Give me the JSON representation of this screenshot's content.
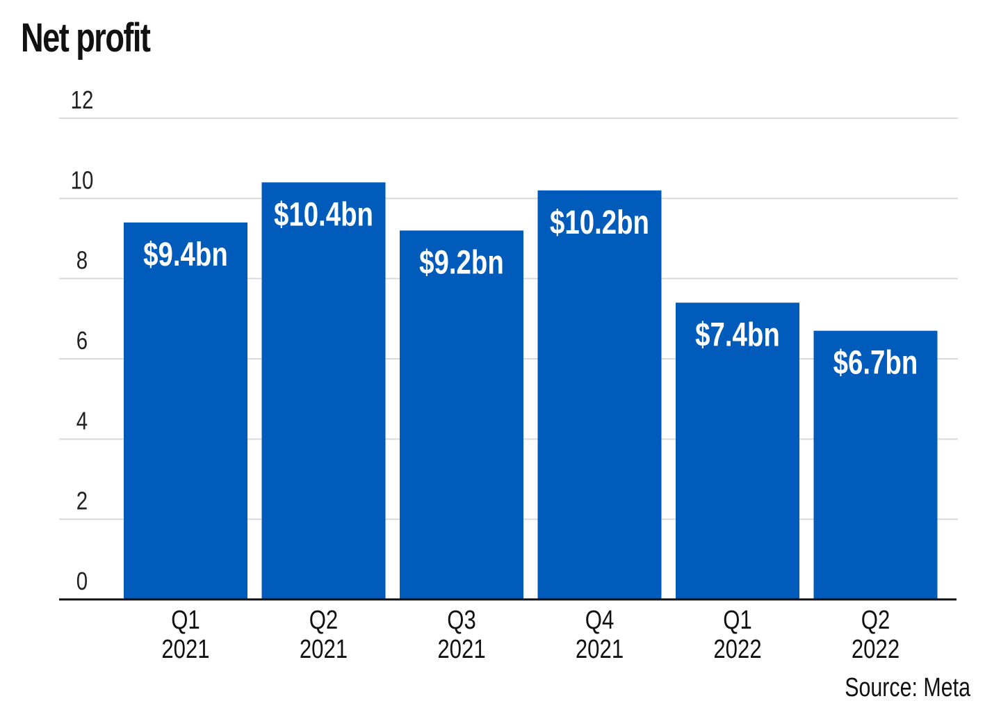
{
  "title": "Net profit",
  "source": "Source: Meta",
  "colors": {
    "bar": "#005BBB",
    "grid": "#d9d9d9",
    "axis": "#111111"
  },
  "chart_data": {
    "type": "bar",
    "title": "Net profit",
    "xlabel": "",
    "ylabel": "",
    "categories": [
      [
        "Q1",
        "2021"
      ],
      [
        "Q2",
        "2021"
      ],
      [
        "Q3",
        "2021"
      ],
      [
        "Q4",
        "2021"
      ],
      [
        "Q1",
        "2022"
      ],
      [
        "Q2",
        "2022"
      ]
    ],
    "values": [
      9.4,
      10.4,
      9.2,
      10.2,
      7.4,
      6.7
    ],
    "data_labels": [
      "$9.4bn",
      "$10.4bn",
      "$9.2bn",
      "$10.2bn",
      "$7.4bn",
      "$6.7bn"
    ],
    "ylim": [
      0,
      12
    ],
    "yticks": [
      0,
      2,
      4,
      6,
      8,
      10,
      12
    ],
    "grid": true,
    "legend": "none"
  }
}
